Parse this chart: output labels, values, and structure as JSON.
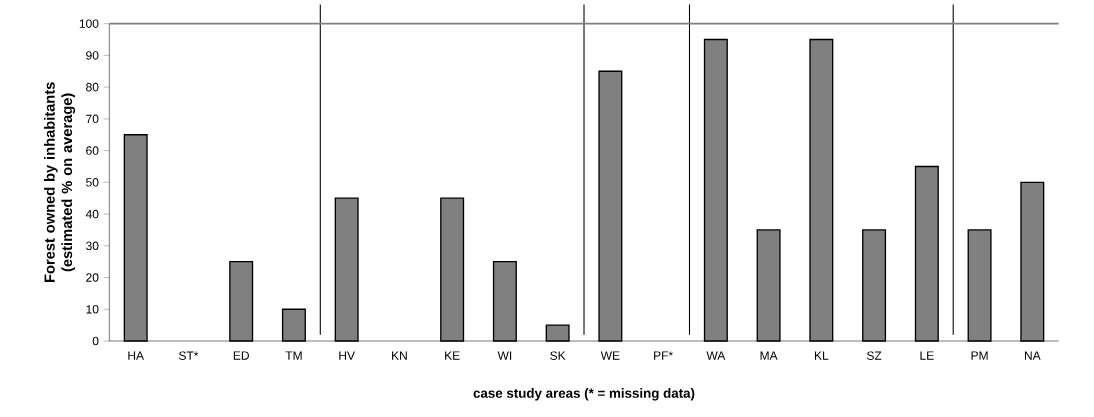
{
  "chart_data": {
    "type": "bar",
    "xlabel": "case study areas (* = missing data)",
    "ylabel": "Forest owned by inhabitants (estimated % on average)",
    "categories": [
      "HA",
      "ST*",
      "ED",
      "TM",
      "HV",
      "KN",
      "KE",
      "WI",
      "SK",
      "WE",
      "PF*",
      "WA",
      "MA",
      "KL",
      "SZ",
      "LE",
      "PM",
      "NA"
    ],
    "values": [
      65,
      null,
      25,
      10,
      45,
      null,
      45,
      25,
      5,
      85,
      null,
      95,
      35,
      95,
      35,
      55,
      35,
      50
    ],
    "color": "#808080",
    "ylim": [
      0,
      100
    ],
    "yticks": [
      0,
      10,
      20,
      30,
      40,
      50,
      60,
      70,
      80,
      90,
      100
    ],
    "ref_lines": [
      {
        "axis": "y",
        "value": 100,
        "color": "#808080"
      }
    ],
    "grid": false
  }
}
